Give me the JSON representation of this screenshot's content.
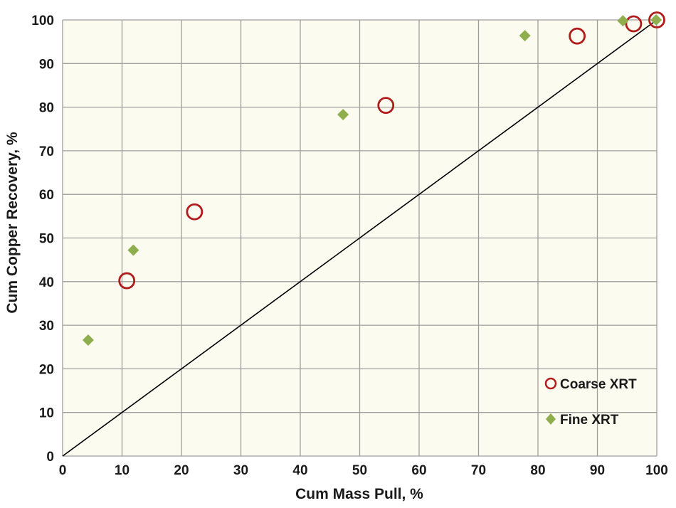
{
  "chart_data": {
    "type": "scatter",
    "xlabel": "Cum Mass Pull, %",
    "ylabel": "Cum Copper Recovery, %",
    "xlim": [
      0,
      100
    ],
    "ylim": [
      0,
      100
    ],
    "x_ticks": [
      "0",
      "10",
      "20",
      "30",
      "40",
      "50",
      "60",
      "70",
      "80",
      "90",
      "100"
    ],
    "y_ticks": [
      "0",
      "10",
      "20",
      "30",
      "40",
      "50",
      "60",
      "70",
      "80",
      "90",
      "100"
    ],
    "grid": true,
    "plot_background": "#fcfbf0",
    "grid_color": "#9e9e9e",
    "reference_line": {
      "x": [
        0,
        100
      ],
      "y": [
        0,
        100
      ],
      "color": "#000000"
    },
    "legend_position": "bottom-right",
    "series": [
      {
        "name": "Coarse XRT",
        "marker": "open-circle",
        "color": "#b01c1c",
        "points": [
          {
            "x": 10.8,
            "y": 40.2
          },
          {
            "x": 22.2,
            "y": 56.0
          },
          {
            "x": 54.4,
            "y": 80.4
          },
          {
            "x": 86.6,
            "y": 96.3
          },
          {
            "x": 96.1,
            "y": 99.1
          },
          {
            "x": 100.0,
            "y": 100.0
          }
        ]
      },
      {
        "name": "Fine XRT",
        "marker": "diamond",
        "color": "#8faf4e",
        "points": [
          {
            "x": 4.3,
            "y": 26.6
          },
          {
            "x": 11.9,
            "y": 47.2
          },
          {
            "x": 47.2,
            "y": 78.3
          },
          {
            "x": 77.8,
            "y": 96.4
          },
          {
            "x": 94.3,
            "y": 99.8
          },
          {
            "x": 99.9,
            "y": 100.0
          }
        ]
      }
    ]
  }
}
